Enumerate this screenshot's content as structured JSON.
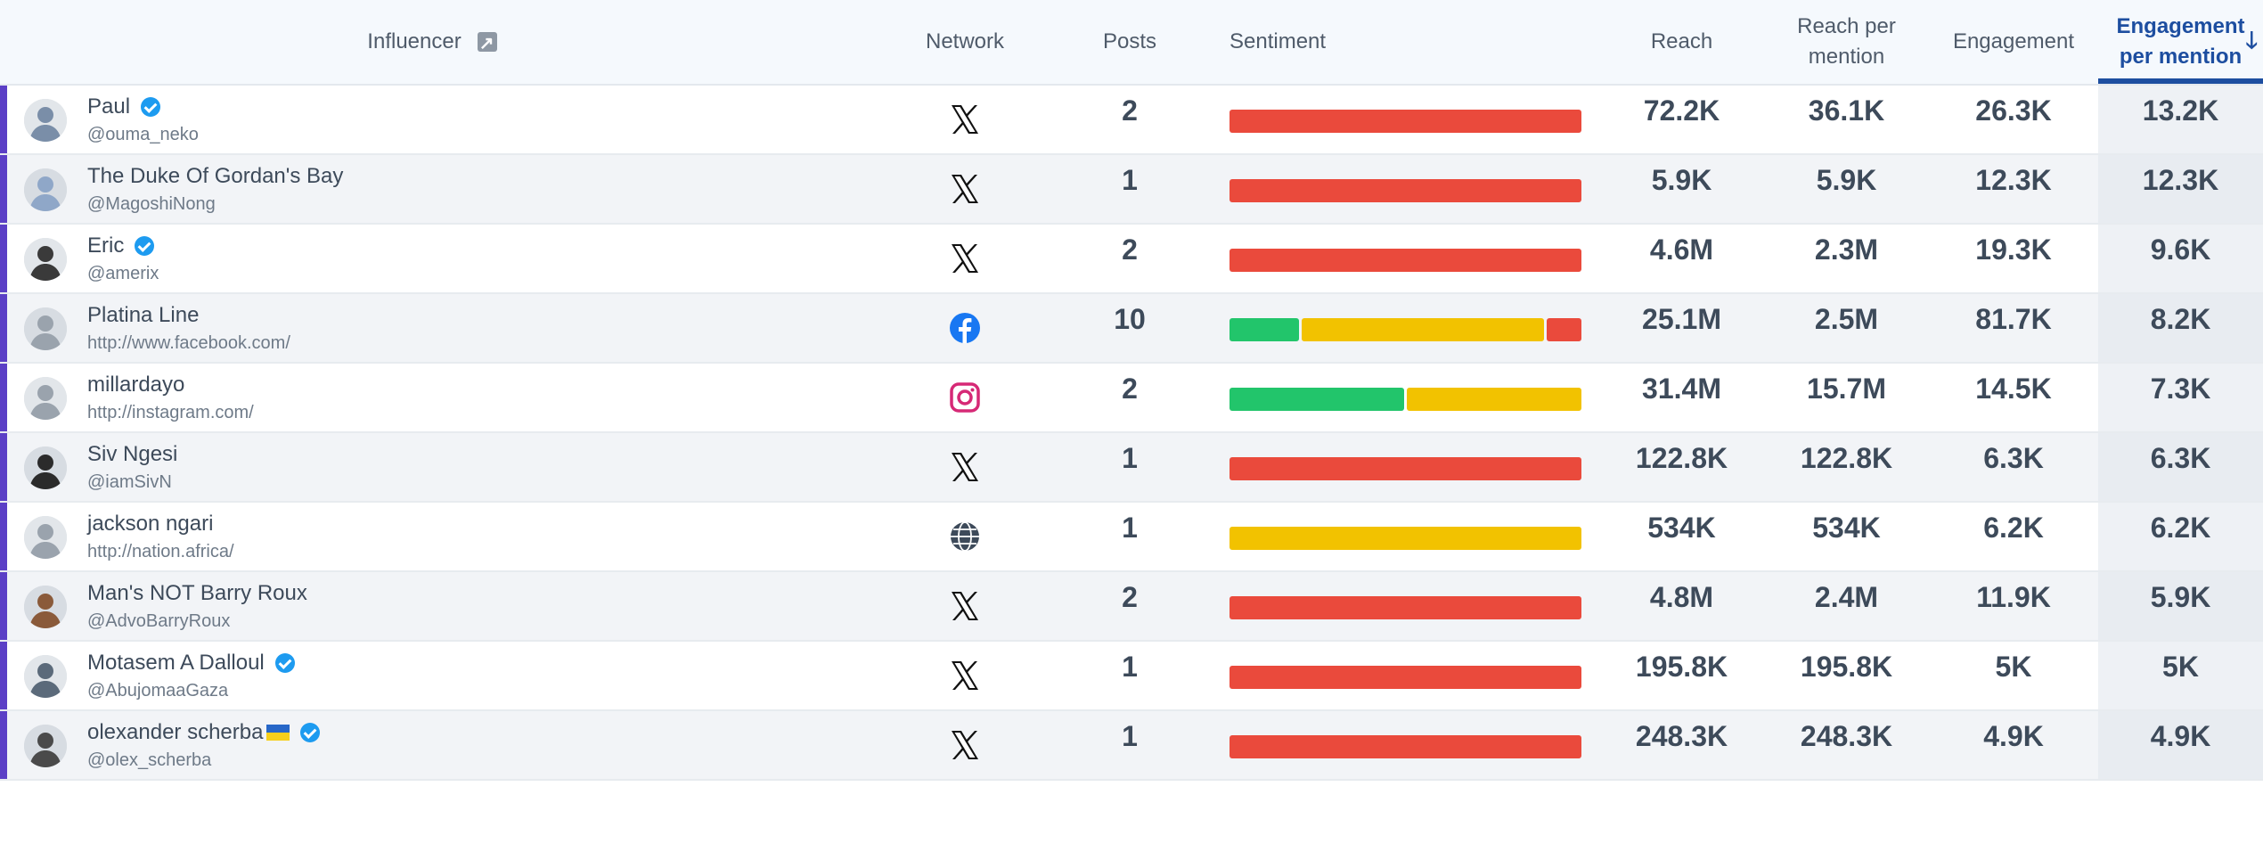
{
  "header": {
    "influencer": "Influencer",
    "network": "Network",
    "posts": "Posts",
    "sentiment": "Sentiment",
    "reach": "Reach",
    "reach_per_mention_1": "Reach per",
    "reach_per_mention_2": "mention",
    "engagement": "Engagement",
    "engagement_per_mention_1": "Engagement",
    "engagement_per_mention_2": "per mention",
    "sort_icon": "arrow-down-icon",
    "influencer_icon": "open-external-icon"
  },
  "colors": {
    "accent": "#1d4ea0",
    "row_marker": "#5b3fc6",
    "positive": "#22c56b",
    "neutral": "#f2c200",
    "negative": "#ea4a3c"
  },
  "rows": [
    {
      "name": "Paul",
      "verified": true,
      "flag": false,
      "handle": "@ouma_neko",
      "network": "x",
      "posts": "2",
      "sentiment": [
        0,
        0,
        1
      ],
      "reach": "72.2K",
      "reach_per_mention": "36.1K",
      "engagement": "26.3K",
      "engagement_per_mention": "13.2K"
    },
    {
      "name": "The Duke Of Gordan's Bay",
      "verified": false,
      "flag": false,
      "handle": "@MagoshiNong",
      "network": "x",
      "posts": "1",
      "sentiment": [
        0,
        0,
        1
      ],
      "reach": "5.9K",
      "reach_per_mention": "5.9K",
      "engagement": "12.3K",
      "engagement_per_mention": "12.3K"
    },
    {
      "name": "Eric",
      "verified": true,
      "flag": false,
      "handle": "@amerix",
      "network": "x",
      "posts": "2",
      "sentiment": [
        0,
        0,
        1
      ],
      "reach": "4.6M",
      "reach_per_mention": "2.3M",
      "engagement": "19.3K",
      "engagement_per_mention": "9.6K"
    },
    {
      "name": "Platina Line",
      "verified": false,
      "flag": false,
      "handle": "http://www.facebook.com/",
      "network": "facebook",
      "posts": "10",
      "sentiment": [
        0.2,
        0.7,
        0.1
      ],
      "reach": "25.1M",
      "reach_per_mention": "2.5M",
      "engagement": "81.7K",
      "engagement_per_mention": "8.2K"
    },
    {
      "name": "millardayo",
      "verified": false,
      "flag": false,
      "handle": "http://instagram.com/",
      "network": "instagram",
      "posts": "2",
      "sentiment": [
        0.5,
        0.5,
        0
      ],
      "reach": "31.4M",
      "reach_per_mention": "15.7M",
      "engagement": "14.5K",
      "engagement_per_mention": "7.3K"
    },
    {
      "name": "Siv Ngesi",
      "verified": false,
      "flag": false,
      "handle": "@iamSivN",
      "network": "x",
      "posts": "1",
      "sentiment": [
        0,
        0,
        1
      ],
      "reach": "122.8K",
      "reach_per_mention": "122.8K",
      "engagement": "6.3K",
      "engagement_per_mention": "6.3K"
    },
    {
      "name": "jackson ngari",
      "verified": false,
      "flag": false,
      "handle": "http://nation.africa/",
      "network": "web",
      "posts": "1",
      "sentiment": [
        0,
        1,
        0
      ],
      "reach": "534K",
      "reach_per_mention": "534K",
      "engagement": "6.2K",
      "engagement_per_mention": "6.2K"
    },
    {
      "name": "Man's NOT Barry Roux",
      "verified": false,
      "flag": false,
      "handle": "@AdvoBarryRoux",
      "network": "x",
      "posts": "2",
      "sentiment": [
        0,
        0,
        1
      ],
      "reach": "4.8M",
      "reach_per_mention": "2.4M",
      "engagement": "11.9K",
      "engagement_per_mention": "5.9K"
    },
    {
      "name": "Motasem A Dalloul",
      "verified": true,
      "flag": false,
      "handle": "@AbujomaaGaza",
      "network": "x",
      "posts": "1",
      "sentiment": [
        0,
        0,
        1
      ],
      "reach": "195.8K",
      "reach_per_mention": "195.8K",
      "engagement": "5K",
      "engagement_per_mention": "5K"
    },
    {
      "name": "olexander scherba",
      "verified": true,
      "flag": true,
      "handle": "@olex_scherba",
      "network": "x",
      "posts": "1",
      "sentiment": [
        0,
        0,
        1
      ],
      "reach": "248.3K",
      "reach_per_mention": "248.3K",
      "engagement": "4.9K",
      "engagement_per_mention": "4.9K"
    }
  ]
}
